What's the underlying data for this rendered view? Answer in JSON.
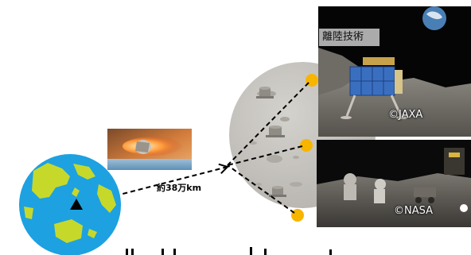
{
  "labels": {
    "takeoff": "離陸技術",
    "jaxa_credit": "©JAXA",
    "nasa_credit": "©NASA",
    "distance": "約38万km"
  },
  "colors": {
    "ocean": "#1da1e0",
    "land": "#c6d92b",
    "moon": "#c9c7c2",
    "landing_site": "#f7b500",
    "capsule_glow": "#e07a3a",
    "night_sky": "#0a0a0a"
  },
  "icons": [
    "earth-globe-icon",
    "moon-icon",
    "capsule-reentry-image",
    "lunar-lander-image",
    "astronaut-rover-image"
  ]
}
